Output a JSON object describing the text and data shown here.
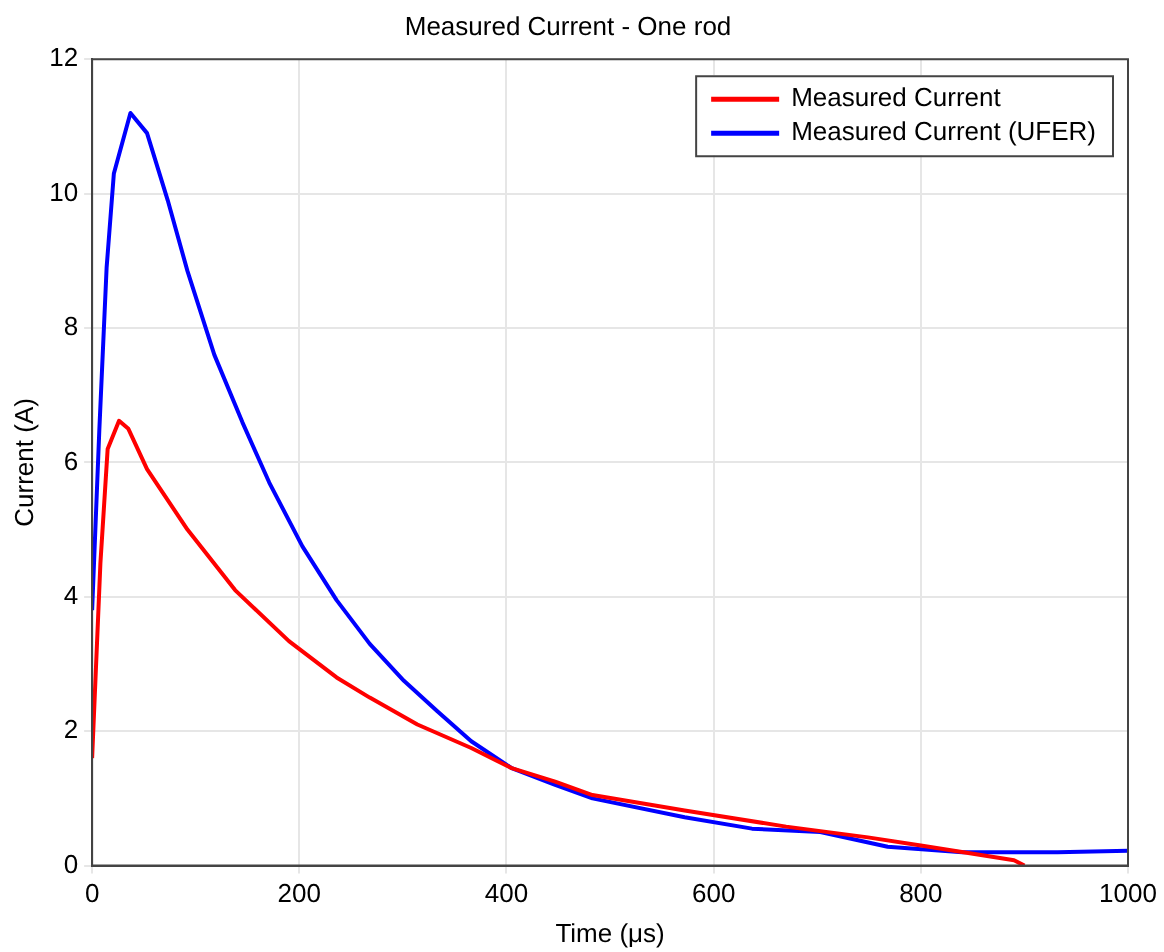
{
  "chart_data": {
    "type": "line",
    "title": "Measured Current - One rod",
    "xlabel": "Time (μs)",
    "ylabel": "Current (A)",
    "xlim": [
      0,
      1000
    ],
    "xticks": [
      0,
      200,
      400,
      600,
      800,
      1000
    ],
    "ylim": [
      0,
      12
    ],
    "yticks": [
      0,
      2,
      4,
      6,
      8,
      10,
      12
    ],
    "grid": true,
    "legend": "top right",
    "marker": "none",
    "line_style": "solid",
    "series": [
      {
        "name": "Measured Current",
        "color": "#ff0000",
        "x": [
          0,
          8,
          15,
          26,
          35,
          53,
          92,
          138,
          190,
          236,
          268,
          314,
          366,
          405,
          447,
          483,
          572,
          670,
          749,
          800,
          890,
          900
        ],
        "values": [
          1.6,
          4.5,
          6.2,
          6.62,
          6.5,
          5.9,
          5.0,
          4.1,
          3.34,
          2.8,
          2.5,
          2.1,
          1.75,
          1.45,
          1.25,
          1.05,
          0.82,
          0.58,
          0.42,
          0.3,
          0.08,
          0
        ]
      },
      {
        "name": "Measured Current (UFER)",
        "color": "#0000ff",
        "x": [
          0,
          7,
          14,
          21,
          37,
          53,
          73,
          92,
          118,
          145,
          171,
          203,
          236,
          268,
          301,
          333,
          366,
          405,
          447,
          483,
          572,
          637,
          703,
          768,
          840,
          932,
          1000
        ],
        "values": [
          3.8,
          6.5,
          8.9,
          10.3,
          11.2,
          10.9,
          9.9,
          8.85,
          7.6,
          6.6,
          5.7,
          4.75,
          3.95,
          3.3,
          2.75,
          2.3,
          1.85,
          1.45,
          1.2,
          1.0,
          0.72,
          0.55,
          0.5,
          0.28,
          0.2,
          0.2,
          0.22
        ]
      }
    ]
  }
}
